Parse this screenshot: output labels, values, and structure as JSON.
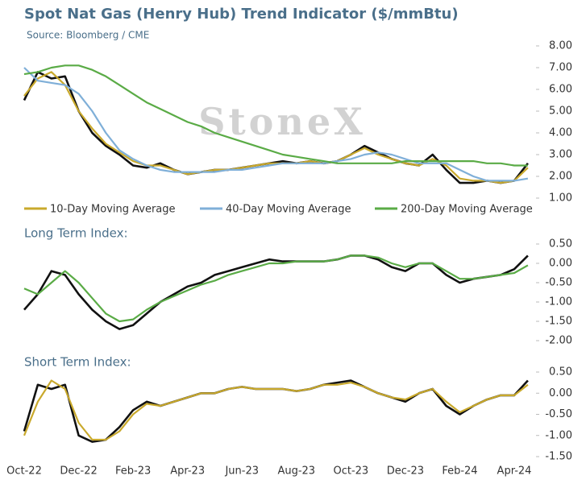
{
  "chart_data": [
    {
      "type": "line",
      "title": "Spot Nat Gas (Henry Hub) Trend Indicator ($/mmBtu)",
      "subtitle": "Source: Bloomberg / CME",
      "watermark": "StoneX",
      "ylim": [
        1,
        8
      ],
      "yticks": [
        {
          "value": 1,
          "label": "1.00"
        },
        {
          "value": 2,
          "label": "2.00"
        },
        {
          "value": 3,
          "label": "3.00"
        },
        {
          "value": 4,
          "label": "4.00"
        },
        {
          "value": 5,
          "label": "5.00"
        },
        {
          "value": 6,
          "label": "6.00"
        },
        {
          "value": 7,
          "label": "7.00"
        },
        {
          "value": 8,
          "label": "8.00"
        }
      ],
      "series": [
        {
          "color": "#111111",
          "values": [
            5.5,
            6.8,
            6.5,
            6.6,
            5.0,
            4.0,
            3.4,
            3.0,
            2.5,
            2.4,
            2.6,
            2.3,
            2.1,
            2.2,
            2.3,
            2.3,
            2.4,
            2.5,
            2.6,
            2.7,
            2.6,
            2.7,
            2.6,
            2.7,
            3.0,
            3.4,
            3.1,
            2.8,
            2.6,
            2.5,
            3.0,
            2.3,
            1.7,
            1.7,
            1.8,
            1.7,
            1.8,
            2.6
          ]
        },
        {
          "name": "10-Day Moving Average",
          "color": "#c9a92c",
          "values": [
            5.7,
            6.5,
            6.8,
            6.2,
            5.0,
            4.2,
            3.5,
            3.1,
            2.7,
            2.5,
            2.5,
            2.3,
            2.1,
            2.2,
            2.3,
            2.3,
            2.4,
            2.5,
            2.6,
            2.6,
            2.6,
            2.7,
            2.6,
            2.7,
            3.0,
            3.3,
            3.0,
            2.8,
            2.6,
            2.5,
            2.8,
            2.5,
            1.9,
            1.8,
            1.8,
            1.7,
            1.8,
            2.4
          ]
        },
        {
          "name": "40-Day Moving Average",
          "color": "#7fafd8",
          "values": [
            7.0,
            6.4,
            6.3,
            6.2,
            5.8,
            5.0,
            4.0,
            3.2,
            2.8,
            2.5,
            2.3,
            2.2,
            2.2,
            2.2,
            2.2,
            2.3,
            2.3,
            2.4,
            2.5,
            2.6,
            2.6,
            2.6,
            2.6,
            2.7,
            2.8,
            3.0,
            3.1,
            3.0,
            2.8,
            2.6,
            2.6,
            2.6,
            2.3,
            2.0,
            1.8,
            1.8,
            1.8,
            1.9
          ]
        },
        {
          "name": "200-Day Moving Average",
          "color": "#5aab46",
          "values": [
            6.7,
            6.8,
            7.0,
            7.1,
            7.1,
            6.9,
            6.6,
            6.2,
            5.8,
            5.4,
            5.1,
            4.8,
            4.5,
            4.3,
            4.0,
            3.8,
            3.6,
            3.4,
            3.2,
            3.0,
            2.9,
            2.8,
            2.7,
            2.6,
            2.6,
            2.6,
            2.6,
            2.6,
            2.7,
            2.7,
            2.7,
            2.7,
            2.7,
            2.7,
            2.6,
            2.6,
            2.5,
            2.5
          ]
        }
      ]
    },
    {
      "type": "line",
      "title": "Long Term Index:",
      "ylim": [
        -2,
        0.5
      ],
      "yticks": [
        {
          "value": -2,
          "label": "-2.00"
        },
        {
          "value": -1.5,
          "label": "-1.50"
        },
        {
          "value": -1,
          "label": "-1.00"
        },
        {
          "value": -0.5,
          "label": "-0.50"
        },
        {
          "value": 0,
          "label": "0.00"
        },
        {
          "value": 0.5,
          "label": "0.50"
        }
      ],
      "series": [
        {
          "color": "#111111",
          "values": [
            -1.2,
            -0.8,
            -0.2,
            -0.3,
            -0.8,
            -1.2,
            -1.5,
            -1.7,
            -1.6,
            -1.3,
            -1.0,
            -0.8,
            -0.6,
            -0.5,
            -0.3,
            -0.2,
            -0.1,
            0.0,
            0.1,
            0.05,
            0.05,
            0.05,
            0.05,
            0.1,
            0.2,
            0.2,
            0.1,
            -0.1,
            -0.2,
            0.0,
            0.0,
            -0.3,
            -0.5,
            -0.4,
            -0.35,
            -0.3,
            -0.15,
            0.2
          ]
        },
        {
          "color": "#5aab46",
          "values": [
            -0.65,
            -0.8,
            -0.5,
            -0.2,
            -0.5,
            -0.9,
            -1.3,
            -1.5,
            -1.45,
            -1.2,
            -1.0,
            -0.85,
            -0.7,
            -0.55,
            -0.45,
            -0.3,
            -0.2,
            -0.1,
            0.0,
            0.0,
            0.05,
            0.05,
            0.05,
            0.1,
            0.2,
            0.2,
            0.15,
            0.0,
            -0.1,
            0.0,
            0.0,
            -0.2,
            -0.4,
            -0.4,
            -0.35,
            -0.3,
            -0.25,
            -0.05
          ]
        }
      ]
    },
    {
      "type": "line",
      "title": "Short Term Index:",
      "ylim": [
        -1.5,
        0.5
      ],
      "yticks": [
        {
          "value": -1.5,
          "label": "-1.50"
        },
        {
          "value": -1,
          "label": "-1.00"
        },
        {
          "value": -0.5,
          "label": "-0.50"
        },
        {
          "value": 0,
          "label": "0.00"
        },
        {
          "value": 0.5,
          "label": "0.50"
        }
      ],
      "categories": [
        "Oct-22",
        null,
        null,
        null,
        "Dec-22",
        null,
        null,
        null,
        "Feb-23",
        null,
        null,
        null,
        "Apr-23",
        null,
        null,
        null,
        "Jun-23",
        null,
        null,
        null,
        "Aug-23",
        null,
        null,
        null,
        "Oct-23",
        null,
        null,
        null,
        "Dec-23",
        null,
        null,
        null,
        "Feb-24",
        null,
        null,
        null,
        "Apr-24",
        null
      ],
      "series": [
        {
          "color": "#111111",
          "values": [
            -0.9,
            0.2,
            0.1,
            0.2,
            -1.0,
            -1.15,
            -1.1,
            -0.8,
            -0.4,
            -0.2,
            -0.3,
            -0.2,
            -0.1,
            0.0,
            0.0,
            0.1,
            0.15,
            0.1,
            0.1,
            0.1,
            0.05,
            0.1,
            0.2,
            0.25,
            0.3,
            0.15,
            0.0,
            -0.1,
            -0.2,
            0.0,
            0.1,
            -0.3,
            -0.5,
            -0.3,
            -0.15,
            -0.05,
            -0.05,
            0.3
          ]
        },
        {
          "color": "#c9a92c",
          "values": [
            -1.0,
            -0.2,
            0.3,
            0.1,
            -0.7,
            -1.1,
            -1.1,
            -0.9,
            -0.5,
            -0.25,
            -0.3,
            -0.2,
            -0.1,
            0.0,
            0.0,
            0.1,
            0.15,
            0.1,
            0.1,
            0.1,
            0.05,
            0.1,
            0.2,
            0.2,
            0.25,
            0.15,
            0.0,
            -0.1,
            -0.15,
            0.0,
            0.1,
            -0.2,
            -0.45,
            -0.3,
            -0.15,
            -0.05,
            -0.05,
            0.2
          ]
        }
      ]
    }
  ]
}
